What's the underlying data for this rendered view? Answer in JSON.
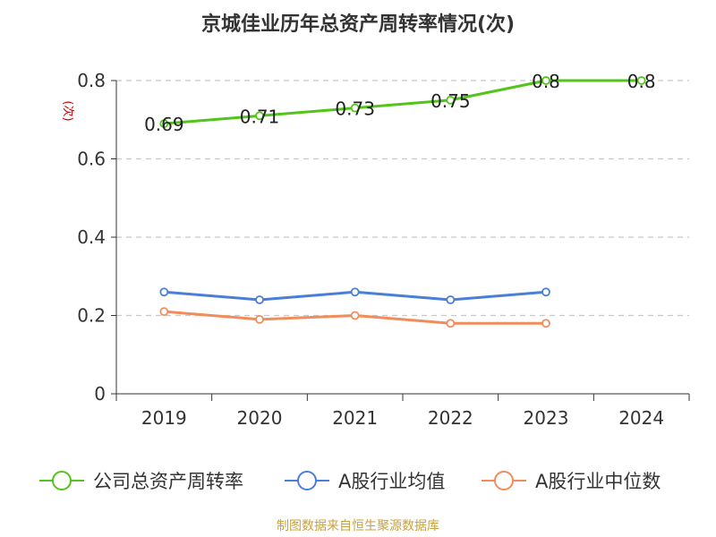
{
  "chart_data": {
    "type": "line",
    "title": "京城佳业历年总资产周转率情况(次)",
    "ylabel": "(次)",
    "categories": [
      "2019",
      "2020",
      "2021",
      "2022",
      "2023",
      "2024"
    ],
    "ylim": [
      0,
      0.8
    ],
    "yticks": [
      "0",
      "0.2",
      "0.4",
      "0.6",
      "0.8"
    ],
    "grid": true,
    "legend_position": "bottom",
    "series": [
      {
        "name": "公司总资产周转率",
        "color": "#52c41a",
        "values": [
          0.69,
          0.71,
          0.73,
          0.75,
          0.8,
          0.8
        ],
        "labels": [
          "0.69",
          "0.71",
          "0.73",
          "0.75",
          "0.8",
          "0.8"
        ]
      },
      {
        "name": "A股行业均值",
        "color": "#4a7fd9",
        "values": [
          0.26,
          0.24,
          0.26,
          0.24,
          0.26,
          null
        ],
        "labels": []
      },
      {
        "name": "A股行业中位数",
        "color": "#f28c5a",
        "values": [
          0.21,
          0.19,
          0.2,
          0.18,
          0.18,
          null
        ],
        "labels": []
      }
    ]
  },
  "source_note": "制图数据来自恒生聚源数据库",
  "colors": {
    "axis": "#333333",
    "grid": "#c8c8c8",
    "ylabel": "#cc0000",
    "source": "#c9a23c"
  }
}
